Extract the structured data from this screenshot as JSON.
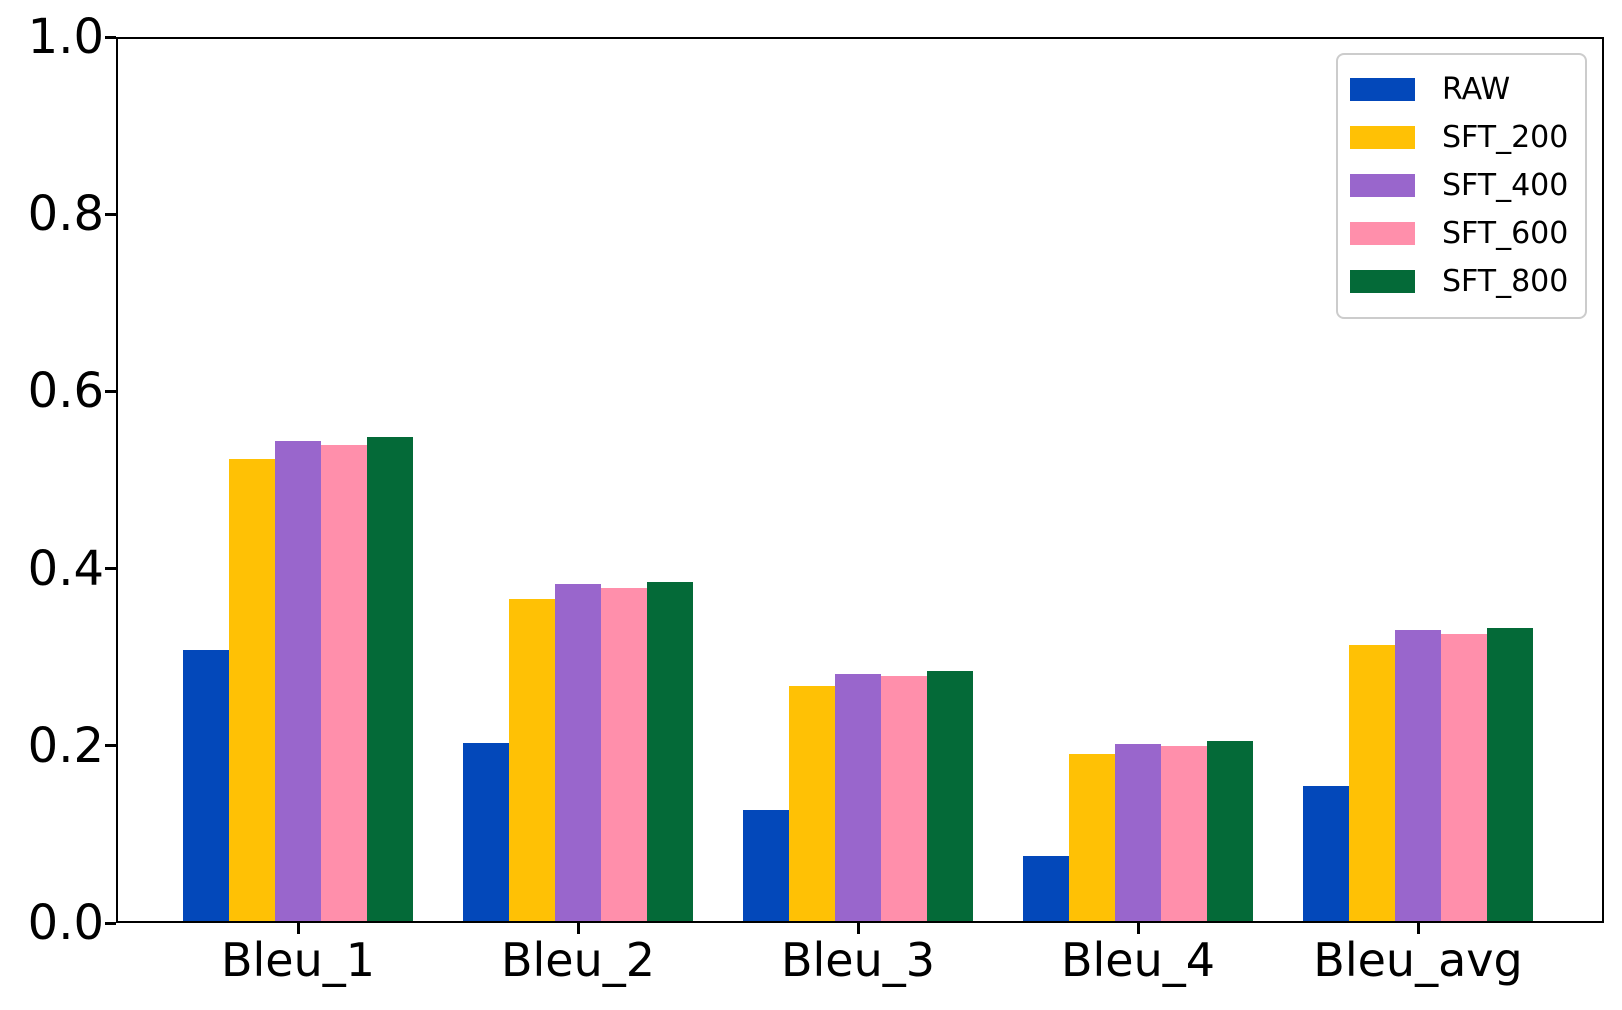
{
  "chart_data": {
    "type": "bar",
    "title": "",
    "xlabel": "",
    "ylabel": "",
    "categories": [
      "Bleu_1",
      "Bleu_2",
      "Bleu_3",
      "Bleu_4",
      "Bleu_avg"
    ],
    "series": [
      {
        "name": "RAW",
        "color": "#0348ba",
        "values": [
          0.306,
          0.201,
          0.125,
          0.073,
          0.152
        ]
      },
      {
        "name": "SFT_200",
        "color": "#ffc105",
        "values": [
          0.521,
          0.363,
          0.265,
          0.189,
          0.311
        ]
      },
      {
        "name": "SFT_400",
        "color": "#9966cc",
        "values": [
          0.542,
          0.38,
          0.279,
          0.2,
          0.328
        ]
      },
      {
        "name": "SFT_600",
        "color": "#ff8fab",
        "values": [
          0.537,
          0.376,
          0.276,
          0.197,
          0.324
        ]
      },
      {
        "name": "SFT_800",
        "color": "#046a38",
        "values": [
          0.546,
          0.383,
          0.282,
          0.203,
          0.331
        ]
      }
    ],
    "ylim": [
      0.0,
      1.0
    ],
    "yticks": [
      "0.0",
      "0.2",
      "0.4",
      "0.6",
      "0.8",
      "1.0"
    ],
    "grid": false,
    "legend_position": "upper right",
    "axis_color": "#000000",
    "background_color": "#ffffff"
  }
}
